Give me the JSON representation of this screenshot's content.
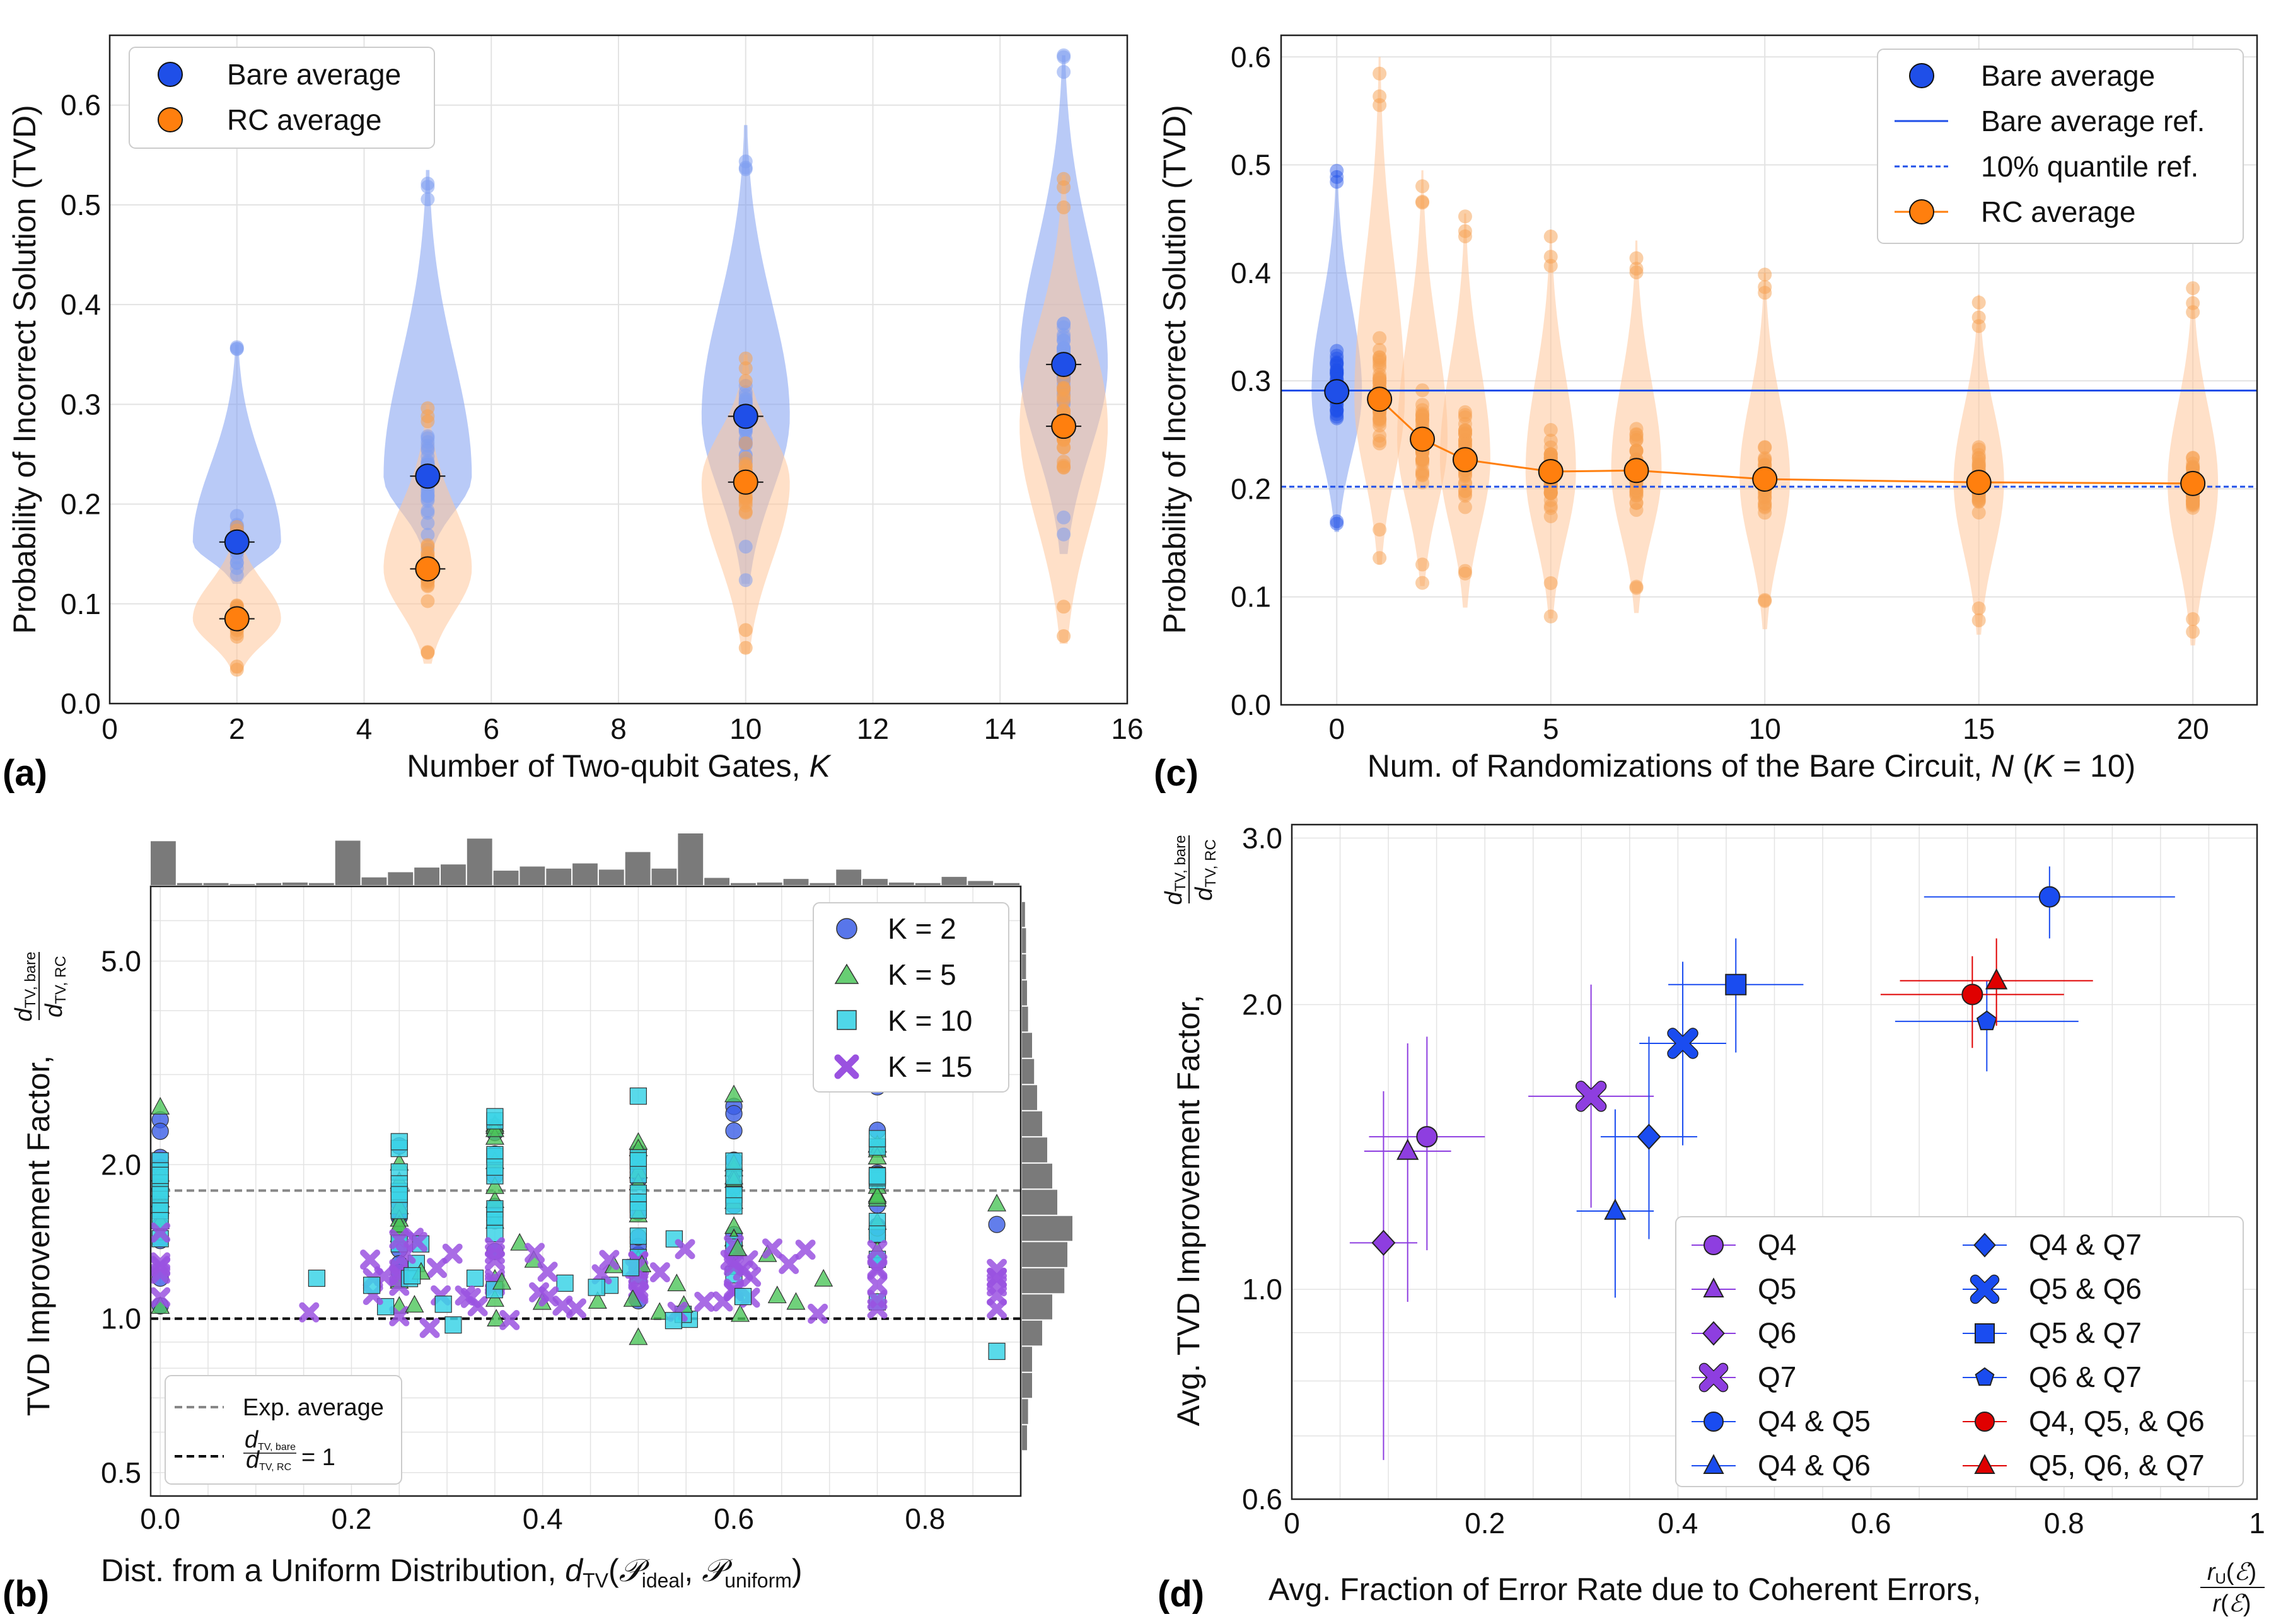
{
  "colors": {
    "bare": "#1f4fe8",
    "rc": "#ff7f0e",
    "bare_violin": "#7f9ff0",
    "rc_violin": "#ffc79a",
    "k2": "#3b5ee6",
    "k5": "#4cc65a",
    "k10": "#3cd3e6",
    "k15": "#9a52e0",
    "hist": "#7a7a7a",
    "exp_avg": "#888888",
    "grid": "#e3e3e3",
    "red": "#e00000",
    "purple": "#8e3ee0",
    "blue": "#1a4cf0"
  },
  "chart_data": [
    {
      "panel": "(a)",
      "type": "violin",
      "title": "",
      "xlabel": "Number of Two-qubit Gates, K",
      "ylabel": "Probability of Incorrect Solution (TVD)",
      "xlim": [
        0,
        16
      ],
      "ylim": [
        0,
        0.67
      ],
      "xticks": [
        "0",
        "2",
        "4",
        "6",
        "8",
        "10",
        "12",
        "14",
        "16"
      ],
      "yticks": [
        "0.0",
        "0.1",
        "0.2",
        "0.3",
        "0.4",
        "0.5",
        "0.6"
      ],
      "legend": [
        "Bare average",
        "RC average"
      ],
      "legend_position": "top-left",
      "categories": [
        2,
        5,
        10,
        15
      ],
      "series": [
        {
          "name": "Bare average",
          "values": [
            0.162,
            0.228,
            0.288,
            0.34
          ],
          "min": [
            0.12,
            0.15,
            0.12,
            0.15
          ],
          "max": [
            0.36,
            0.535,
            0.58,
            0.65
          ]
        },
        {
          "name": "RC average",
          "values": [
            0.085,
            0.135,
            0.222,
            0.278
          ],
          "min": [
            0.03,
            0.04,
            0.05,
            0.06
          ],
          "max": [
            0.18,
            0.3,
            0.35,
            0.53
          ]
        }
      ]
    },
    {
      "panel": "(c)",
      "type": "violin",
      "title": "",
      "xlabel": "Num. of Randomizations of the Bare Circuit, N (K = 10)",
      "ylabel": "Probability of Incorrect Solution (TVD)",
      "xlim": [
        -1.3,
        21.5
      ],
      "ylim": [
        0,
        0.62
      ],
      "xticks": [
        "0",
        "5",
        "10",
        "15",
        "20"
      ],
      "yticks": [
        "0.0",
        "0.1",
        "0.2",
        "0.3",
        "0.4",
        "0.5",
        "0.6"
      ],
      "legend": [
        "Bare average",
        "Bare average ref.",
        "10% quantile ref.",
        "RC average"
      ],
      "legend_position": "top-right",
      "bare": {
        "x": 0,
        "value": 0.29,
        "min": 0.16,
        "max": 0.495
      },
      "bare_average_ref": 0.291,
      "quantile_ref": 0.202,
      "series": [
        {
          "name": "RC average",
          "x": [
            1,
            2,
            3,
            5,
            7,
            10,
            15,
            20
          ],
          "values": [
            0.283,
            0.246,
            0.227,
            0.216,
            0.217,
            0.209,
            0.206,
            0.205
          ],
          "min": [
            0.13,
            0.11,
            0.09,
            0.08,
            0.085,
            0.07,
            0.065,
            0.055
          ],
          "max": [
            0.6,
            0.495,
            0.455,
            0.44,
            0.43,
            0.4,
            0.38,
            0.39
          ]
        }
      ]
    },
    {
      "panel": "(b)",
      "type": "scatter",
      "title": "",
      "xlabel_text": "Dist. from a Uniform Distribution,",
      "ylabel": "TVD Improvement Factor,",
      "yscale": "log",
      "xlim": [
        -0.01,
        0.9
      ],
      "ylim": [
        0.45,
        7.0
      ],
      "xticks": [
        "0.0",
        "0.2",
        "0.4",
        "0.6",
        "0.8"
      ],
      "yticks": [
        "0.5",
        "1.0",
        "2.0",
        "5.0"
      ],
      "legend": [
        "K = 2",
        "K = 5",
        "K = 10",
        "K = 15"
      ],
      "legend_position": "top-right",
      "legend2": [
        "Exp. average",
        "= 1"
      ],
      "exp_average": 1.78,
      "unity": 1.0,
      "column_x": [
        0,
        0.25,
        0.35,
        0.5,
        0.6,
        0.75,
        0.875
      ],
      "hist_top_heights": [
        0.85,
        0.04,
        0.04,
        0.02,
        0.04,
        0.05,
        0.04,
        0.86,
        0.15,
        0.25,
        0.34,
        0.4,
        0.9,
        0.28,
        0.36,
        0.32,
        0.42,
        0.3,
        0.64,
        0.32,
        1.0,
        0.14,
        0.04,
        0.05,
        0.12,
        0.04,
        0.3,
        0.12,
        0.05,
        0.04,
        0.16,
        0.08,
        0.04
      ],
      "hist_right_heights": [
        0.05,
        0.06,
        0.1,
        0.1,
        0.2,
        0.3,
        0.42,
        0.45,
        0.5,
        0.35,
        0.3,
        0.25,
        0.2,
        0.15,
        0.12,
        0.1,
        0.06,
        0.05,
        0.04,
        0.04,
        0.03
      ]
    },
    {
      "panel": "(d)",
      "type": "scatter",
      "title": "",
      "xlabel_text": "Avg. Fraction of Error Rate due to Coherent Errors,",
      "ylabel": "Avg. TVD Improvement Factor,",
      "yscale": "log",
      "xlim": [
        0,
        1
      ],
      "ylim": [
        0.6,
        3.1
      ],
      "xticks": [
        "0",
        "0.2",
        "0.4",
        "0.6",
        "0.8",
        "1"
      ],
      "yticks": [
        "0.6",
        "1.0",
        "2.0",
        "3.0"
      ],
      "legend_position": "bottom-right",
      "points": [
        {
          "name": "Q4",
          "x": 0.14,
          "y": 1.45,
          "xerr": 0.06,
          "ylo": 1.1,
          "yhi": 1.85,
          "marker": "circle",
          "color": "purple"
        },
        {
          "name": "Q5",
          "x": 0.12,
          "y": 1.4,
          "xerr": 0.045,
          "ylo": 0.97,
          "yhi": 1.82,
          "marker": "triangle",
          "color": "purple"
        },
        {
          "name": "Q6",
          "x": 0.095,
          "y": 1.12,
          "xerr": 0.035,
          "ylo": 0.66,
          "yhi": 1.62,
          "marker": "diamond",
          "color": "purple"
        },
        {
          "name": "Q7",
          "x": 0.31,
          "y": 1.6,
          "xerr": 0.065,
          "ylo": 1.22,
          "yhi": 2.1,
          "marker": "x",
          "color": "purple"
        },
        {
          "name": "Q4 & Q5",
          "x": 0.785,
          "y": 2.6,
          "xerr": 0.13,
          "ylo": 2.35,
          "yhi": 2.8,
          "marker": "circle",
          "color": "blue"
        },
        {
          "name": "Q4 & Q6",
          "x": 0.335,
          "y": 1.21,
          "xerr": 0.04,
          "ylo": 0.98,
          "yhi": 1.55,
          "marker": "triangle",
          "color": "blue"
        },
        {
          "name": "Q4 & Q7",
          "x": 0.37,
          "y": 1.45,
          "xerr": 0.05,
          "ylo": 1.13,
          "yhi": 1.85,
          "marker": "diamond",
          "color": "blue"
        },
        {
          "name": "Q5 & Q6",
          "x": 0.405,
          "y": 1.82,
          "xerr": 0.045,
          "ylo": 1.42,
          "yhi": 2.22,
          "marker": "x",
          "color": "blue"
        },
        {
          "name": "Q5 & Q7",
          "x": 0.46,
          "y": 2.1,
          "xerr": 0.07,
          "ylo": 1.78,
          "yhi": 2.35,
          "marker": "square",
          "color": "blue"
        },
        {
          "name": "Q6 & Q7",
          "x": 0.72,
          "y": 1.92,
          "xerr": 0.095,
          "ylo": 1.7,
          "yhi": 2.12,
          "marker": "pentagon",
          "color": "blue"
        },
        {
          "name": "Q4, Q5, & Q6",
          "x": 0.705,
          "y": 2.05,
          "xerr": 0.095,
          "ylo": 1.8,
          "yhi": 2.25,
          "marker": "circle",
          "color": "red"
        },
        {
          "name": "Q5, Q6, & Q7",
          "x": 0.73,
          "y": 2.12,
          "xerr": 0.1,
          "ylo": 1.9,
          "yhi": 2.35,
          "marker": "triangle",
          "color": "red"
        }
      ]
    }
  ],
  "panel_labels": {
    "a": "(a)",
    "b": "(b)",
    "c": "(c)",
    "d": "(d)"
  }
}
